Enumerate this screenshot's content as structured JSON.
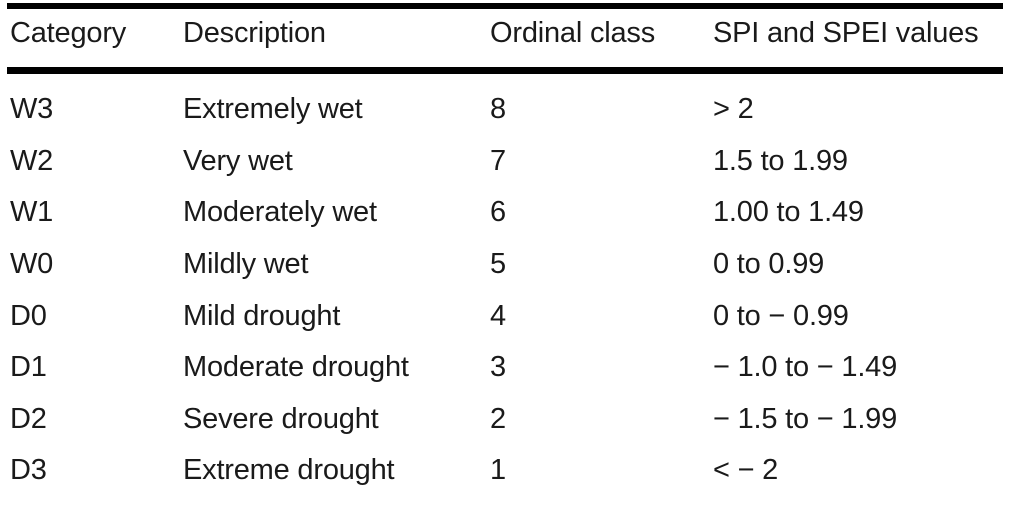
{
  "page": {
    "background": "#ffffff",
    "text_color": "#1a1a1a",
    "rule_color": "#000000"
  },
  "table": {
    "columns": [
      {
        "label": "Category"
      },
      {
        "label": "Description"
      },
      {
        "label": "Ordinal class"
      },
      {
        "label": "SPI and SPEI values"
      }
    ],
    "rows": [
      {
        "category": "W3",
        "description": "Extremely wet",
        "ordinal_class": "8",
        "spi_spei": "> 2"
      },
      {
        "category": "W2",
        "description": "Very wet",
        "ordinal_class": "7",
        "spi_spei": "1.5 to 1.99"
      },
      {
        "category": "W1",
        "description": "Moderately wet",
        "ordinal_class": "6",
        "spi_spei": "1.00 to 1.49"
      },
      {
        "category": "W0",
        "description": "Mildly wet",
        "ordinal_class": "5",
        "spi_spei": "0 to 0.99"
      },
      {
        "category": "D0",
        "description": "Mild drought",
        "ordinal_class": "4",
        "spi_spei": "0 to − 0.99"
      },
      {
        "category": "D1",
        "description": "Moderate drought",
        "ordinal_class": "3",
        "spi_spei": "− 1.0 to − 1.49"
      },
      {
        "category": "D2",
        "description": "Severe drought",
        "ordinal_class": "2",
        "spi_spei": "− 1.5 to − 1.99"
      },
      {
        "category": "D3",
        "description": "Extreme drought",
        "ordinal_class": "1",
        "spi_spei": "< − 2"
      }
    ]
  }
}
